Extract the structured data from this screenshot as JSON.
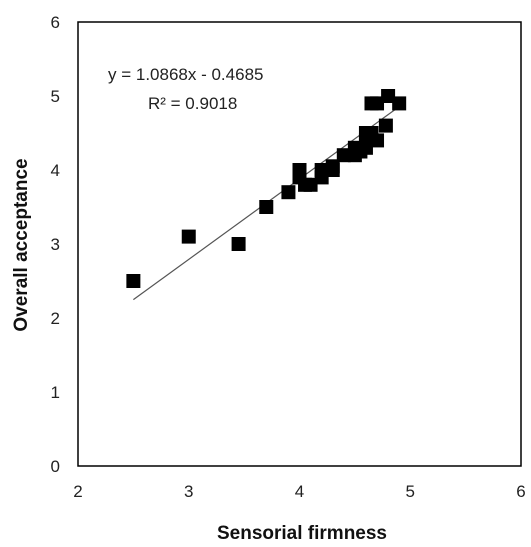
{
  "chart_data": {
    "type": "scatter",
    "xlabel": "Sensorial firmness",
    "ylabel": "Overall acceptance",
    "xlim": [
      2,
      6
    ],
    "ylim": [
      0,
      6
    ],
    "xticks": [
      "2",
      "3",
      "4",
      "5",
      "6"
    ],
    "yticks": [
      "0",
      "1",
      "2",
      "3",
      "4",
      "5",
      "6"
    ],
    "grid": false,
    "legend": "none",
    "marker": "square",
    "marker_color": "#000000",
    "trendline": {
      "type": "linear",
      "slope": 1.0868,
      "intercept": -0.4685,
      "x_range": [
        2.5,
        4.9
      ],
      "color": "#555555"
    },
    "annotation": {
      "equation": "y = 1.0868x - 0.4685",
      "r_squared": "R² = 0.9018"
    },
    "series": [
      {
        "points": [
          [
            2.5,
            2.5
          ],
          [
            3.0,
            3.1
          ],
          [
            3.45,
            3.0
          ],
          [
            3.7,
            3.5
          ],
          [
            3.9,
            3.7
          ],
          [
            4.0,
            4.0
          ],
          [
            4.0,
            3.9
          ],
          [
            4.05,
            3.8
          ],
          [
            4.1,
            3.8
          ],
          [
            4.2,
            4.0
          ],
          [
            4.2,
            3.9
          ],
          [
            4.3,
            4.0
          ],
          [
            4.3,
            4.05
          ],
          [
            4.4,
            4.2
          ],
          [
            4.5,
            4.2
          ],
          [
            4.5,
            4.3
          ],
          [
            4.55,
            4.25
          ],
          [
            4.6,
            4.3
          ],
          [
            4.6,
            4.4
          ],
          [
            4.6,
            4.5
          ],
          [
            4.65,
            4.5
          ],
          [
            4.7,
            4.4
          ],
          [
            4.65,
            4.9
          ],
          [
            4.7,
            4.9
          ],
          [
            4.78,
            4.6
          ],
          [
            4.8,
            5.0
          ],
          [
            4.9,
            4.9
          ]
        ]
      }
    ]
  }
}
